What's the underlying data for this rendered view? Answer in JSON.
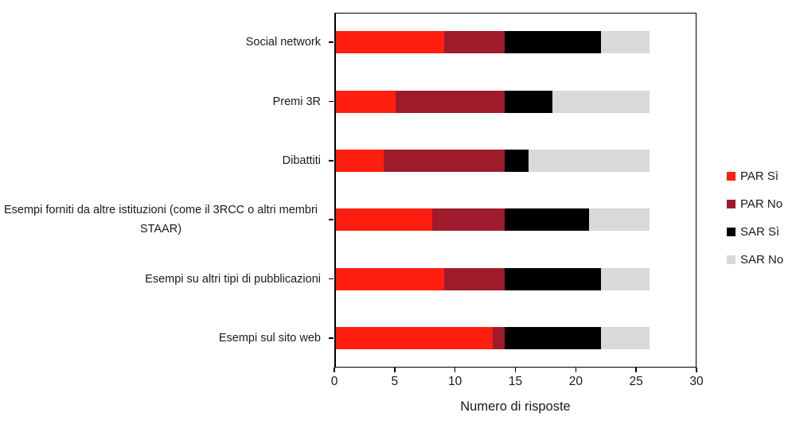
{
  "chart_data": {
    "type": "bar",
    "orientation": "horizontal",
    "stacked": true,
    "title": "",
    "xlabel": "Numero di risposte",
    "ylabel": "",
    "xlim": [
      0,
      30
    ],
    "xticks": [
      0,
      5,
      10,
      15,
      20,
      25,
      30
    ],
    "grid": false,
    "legend_position": "right",
    "background_color": "#FFFFFF",
    "categories": [
      "Social network",
      "Premi 3R",
      "Dibattiti",
      "Esempi forniti da altre istituzioni  (come il 3RCC o altri membri  STAAR)",
      "Esempi su altri tipi di pubblicazioni",
      "Esempi sul sito web"
    ],
    "series": [
      {
        "name": "PAR Sì",
        "color": "#FF1F10",
        "values": [
          9,
          5,
          4,
          8,
          9,
          13
        ]
      },
      {
        "name": "PAR No",
        "color": "#9E1B2B",
        "values": [
          5,
          9,
          10,
          6,
          5,
          1
        ]
      },
      {
        "name": "SAR Sì",
        "color": "#000000",
        "values": [
          8,
          4,
          2,
          7,
          8,
          8
        ]
      },
      {
        "name": "SAR No",
        "color": "#D9D9D9",
        "values": [
          4,
          8,
          10,
          5,
          4,
          4
        ]
      }
    ],
    "category_totals": [
      26,
      26,
      26,
      26,
      26,
      26
    ]
  }
}
